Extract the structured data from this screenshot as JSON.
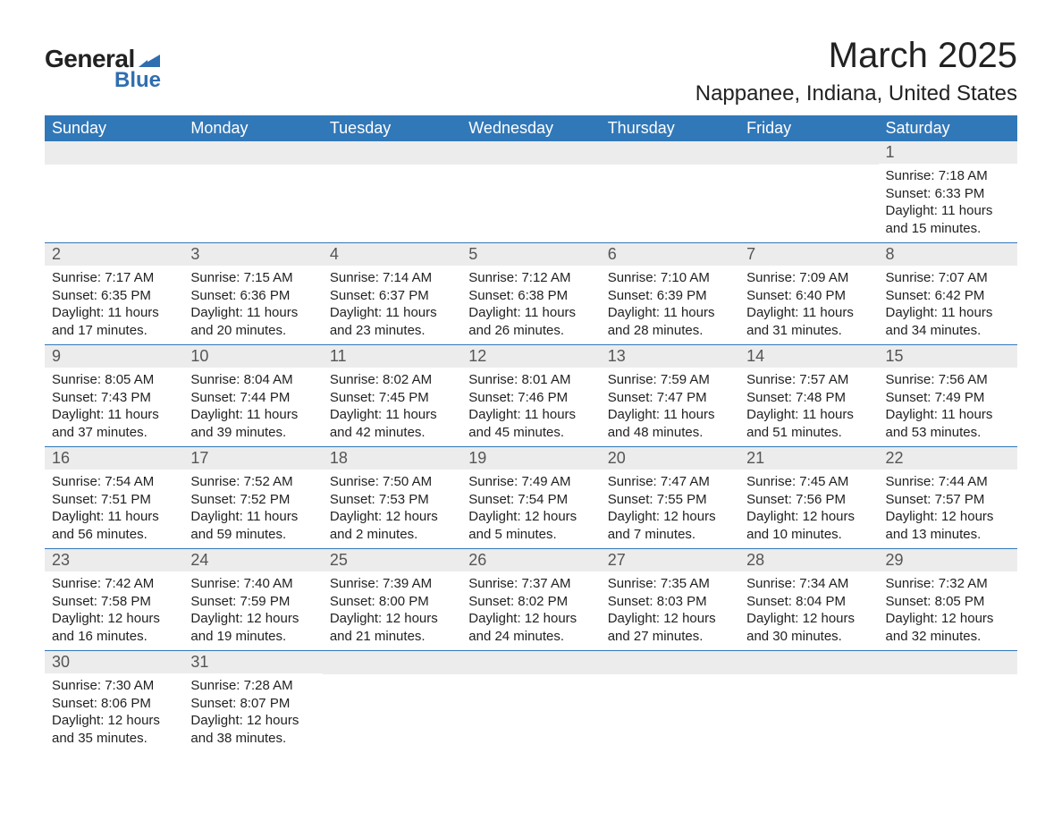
{
  "brand": {
    "name_part1": "General",
    "name_part2": "Blue",
    "sail_color": "#2f6eb0",
    "text_color": "#222222"
  },
  "title": {
    "month_year": "March 2025",
    "location": "Nappanee, Indiana, United States"
  },
  "styling": {
    "header_bg": "#3178b9",
    "header_text": "#ffffff",
    "daynum_bg": "#ececec",
    "daynum_text": "#555555",
    "row_divider": "#3178b9",
    "body_text": "#222222",
    "page_bg": "#ffffff",
    "header_fontsize_pt": 18,
    "daynum_fontsize_pt": 18,
    "body_fontsize_pt": 15,
    "title_fontsize_pt": 40,
    "location_fontsize_pt": 24
  },
  "day_headers": [
    "Sunday",
    "Monday",
    "Tuesday",
    "Wednesday",
    "Thursday",
    "Friday",
    "Saturday"
  ],
  "labels": {
    "sunrise": "Sunrise:",
    "sunset": "Sunset:",
    "daylight": "Daylight:"
  },
  "weeks": [
    [
      {
        "blank": true
      },
      {
        "blank": true
      },
      {
        "blank": true
      },
      {
        "blank": true
      },
      {
        "blank": true
      },
      {
        "blank": true
      },
      {
        "day": "1",
        "sunrise": "7:18 AM",
        "sunset": "6:33 PM",
        "daylight": "11 hours and 15 minutes."
      }
    ],
    [
      {
        "day": "2",
        "sunrise": "7:17 AM",
        "sunset": "6:35 PM",
        "daylight": "11 hours and 17 minutes."
      },
      {
        "day": "3",
        "sunrise": "7:15 AM",
        "sunset": "6:36 PM",
        "daylight": "11 hours and 20 minutes."
      },
      {
        "day": "4",
        "sunrise": "7:14 AM",
        "sunset": "6:37 PM",
        "daylight": "11 hours and 23 minutes."
      },
      {
        "day": "5",
        "sunrise": "7:12 AM",
        "sunset": "6:38 PM",
        "daylight": "11 hours and 26 minutes."
      },
      {
        "day": "6",
        "sunrise": "7:10 AM",
        "sunset": "6:39 PM",
        "daylight": "11 hours and 28 minutes."
      },
      {
        "day": "7",
        "sunrise": "7:09 AM",
        "sunset": "6:40 PM",
        "daylight": "11 hours and 31 minutes."
      },
      {
        "day": "8",
        "sunrise": "7:07 AM",
        "sunset": "6:42 PM",
        "daylight": "11 hours and 34 minutes."
      }
    ],
    [
      {
        "day": "9",
        "sunrise": "8:05 AM",
        "sunset": "7:43 PM",
        "daylight": "11 hours and 37 minutes."
      },
      {
        "day": "10",
        "sunrise": "8:04 AM",
        "sunset": "7:44 PM",
        "daylight": "11 hours and 39 minutes."
      },
      {
        "day": "11",
        "sunrise": "8:02 AM",
        "sunset": "7:45 PM",
        "daylight": "11 hours and 42 minutes."
      },
      {
        "day": "12",
        "sunrise": "8:01 AM",
        "sunset": "7:46 PM",
        "daylight": "11 hours and 45 minutes."
      },
      {
        "day": "13",
        "sunrise": "7:59 AM",
        "sunset": "7:47 PM",
        "daylight": "11 hours and 48 minutes."
      },
      {
        "day": "14",
        "sunrise": "7:57 AM",
        "sunset": "7:48 PM",
        "daylight": "11 hours and 51 minutes."
      },
      {
        "day": "15",
        "sunrise": "7:56 AM",
        "sunset": "7:49 PM",
        "daylight": "11 hours and 53 minutes."
      }
    ],
    [
      {
        "day": "16",
        "sunrise": "7:54 AM",
        "sunset": "7:51 PM",
        "daylight": "11 hours and 56 minutes."
      },
      {
        "day": "17",
        "sunrise": "7:52 AM",
        "sunset": "7:52 PM",
        "daylight": "11 hours and 59 minutes."
      },
      {
        "day": "18",
        "sunrise": "7:50 AM",
        "sunset": "7:53 PM",
        "daylight": "12 hours and 2 minutes."
      },
      {
        "day": "19",
        "sunrise": "7:49 AM",
        "sunset": "7:54 PM",
        "daylight": "12 hours and 5 minutes."
      },
      {
        "day": "20",
        "sunrise": "7:47 AM",
        "sunset": "7:55 PM",
        "daylight": "12 hours and 7 minutes."
      },
      {
        "day": "21",
        "sunrise": "7:45 AM",
        "sunset": "7:56 PM",
        "daylight": "12 hours and 10 minutes."
      },
      {
        "day": "22",
        "sunrise": "7:44 AM",
        "sunset": "7:57 PM",
        "daylight": "12 hours and 13 minutes."
      }
    ],
    [
      {
        "day": "23",
        "sunrise": "7:42 AM",
        "sunset": "7:58 PM",
        "daylight": "12 hours and 16 minutes."
      },
      {
        "day": "24",
        "sunrise": "7:40 AM",
        "sunset": "7:59 PM",
        "daylight": "12 hours and 19 minutes."
      },
      {
        "day": "25",
        "sunrise": "7:39 AM",
        "sunset": "8:00 PM",
        "daylight": "12 hours and 21 minutes."
      },
      {
        "day": "26",
        "sunrise": "7:37 AM",
        "sunset": "8:02 PM",
        "daylight": "12 hours and 24 minutes."
      },
      {
        "day": "27",
        "sunrise": "7:35 AM",
        "sunset": "8:03 PM",
        "daylight": "12 hours and 27 minutes."
      },
      {
        "day": "28",
        "sunrise": "7:34 AM",
        "sunset": "8:04 PM",
        "daylight": "12 hours and 30 minutes."
      },
      {
        "day": "29",
        "sunrise": "7:32 AM",
        "sunset": "8:05 PM",
        "daylight": "12 hours and 32 minutes."
      }
    ],
    [
      {
        "day": "30",
        "sunrise": "7:30 AM",
        "sunset": "8:06 PM",
        "daylight": "12 hours and 35 minutes."
      },
      {
        "day": "31",
        "sunrise": "7:28 AM",
        "sunset": "8:07 PM",
        "daylight": "12 hours and 38 minutes."
      },
      {
        "blank": true
      },
      {
        "blank": true
      },
      {
        "blank": true
      },
      {
        "blank": true
      },
      {
        "blank": true
      }
    ]
  ]
}
